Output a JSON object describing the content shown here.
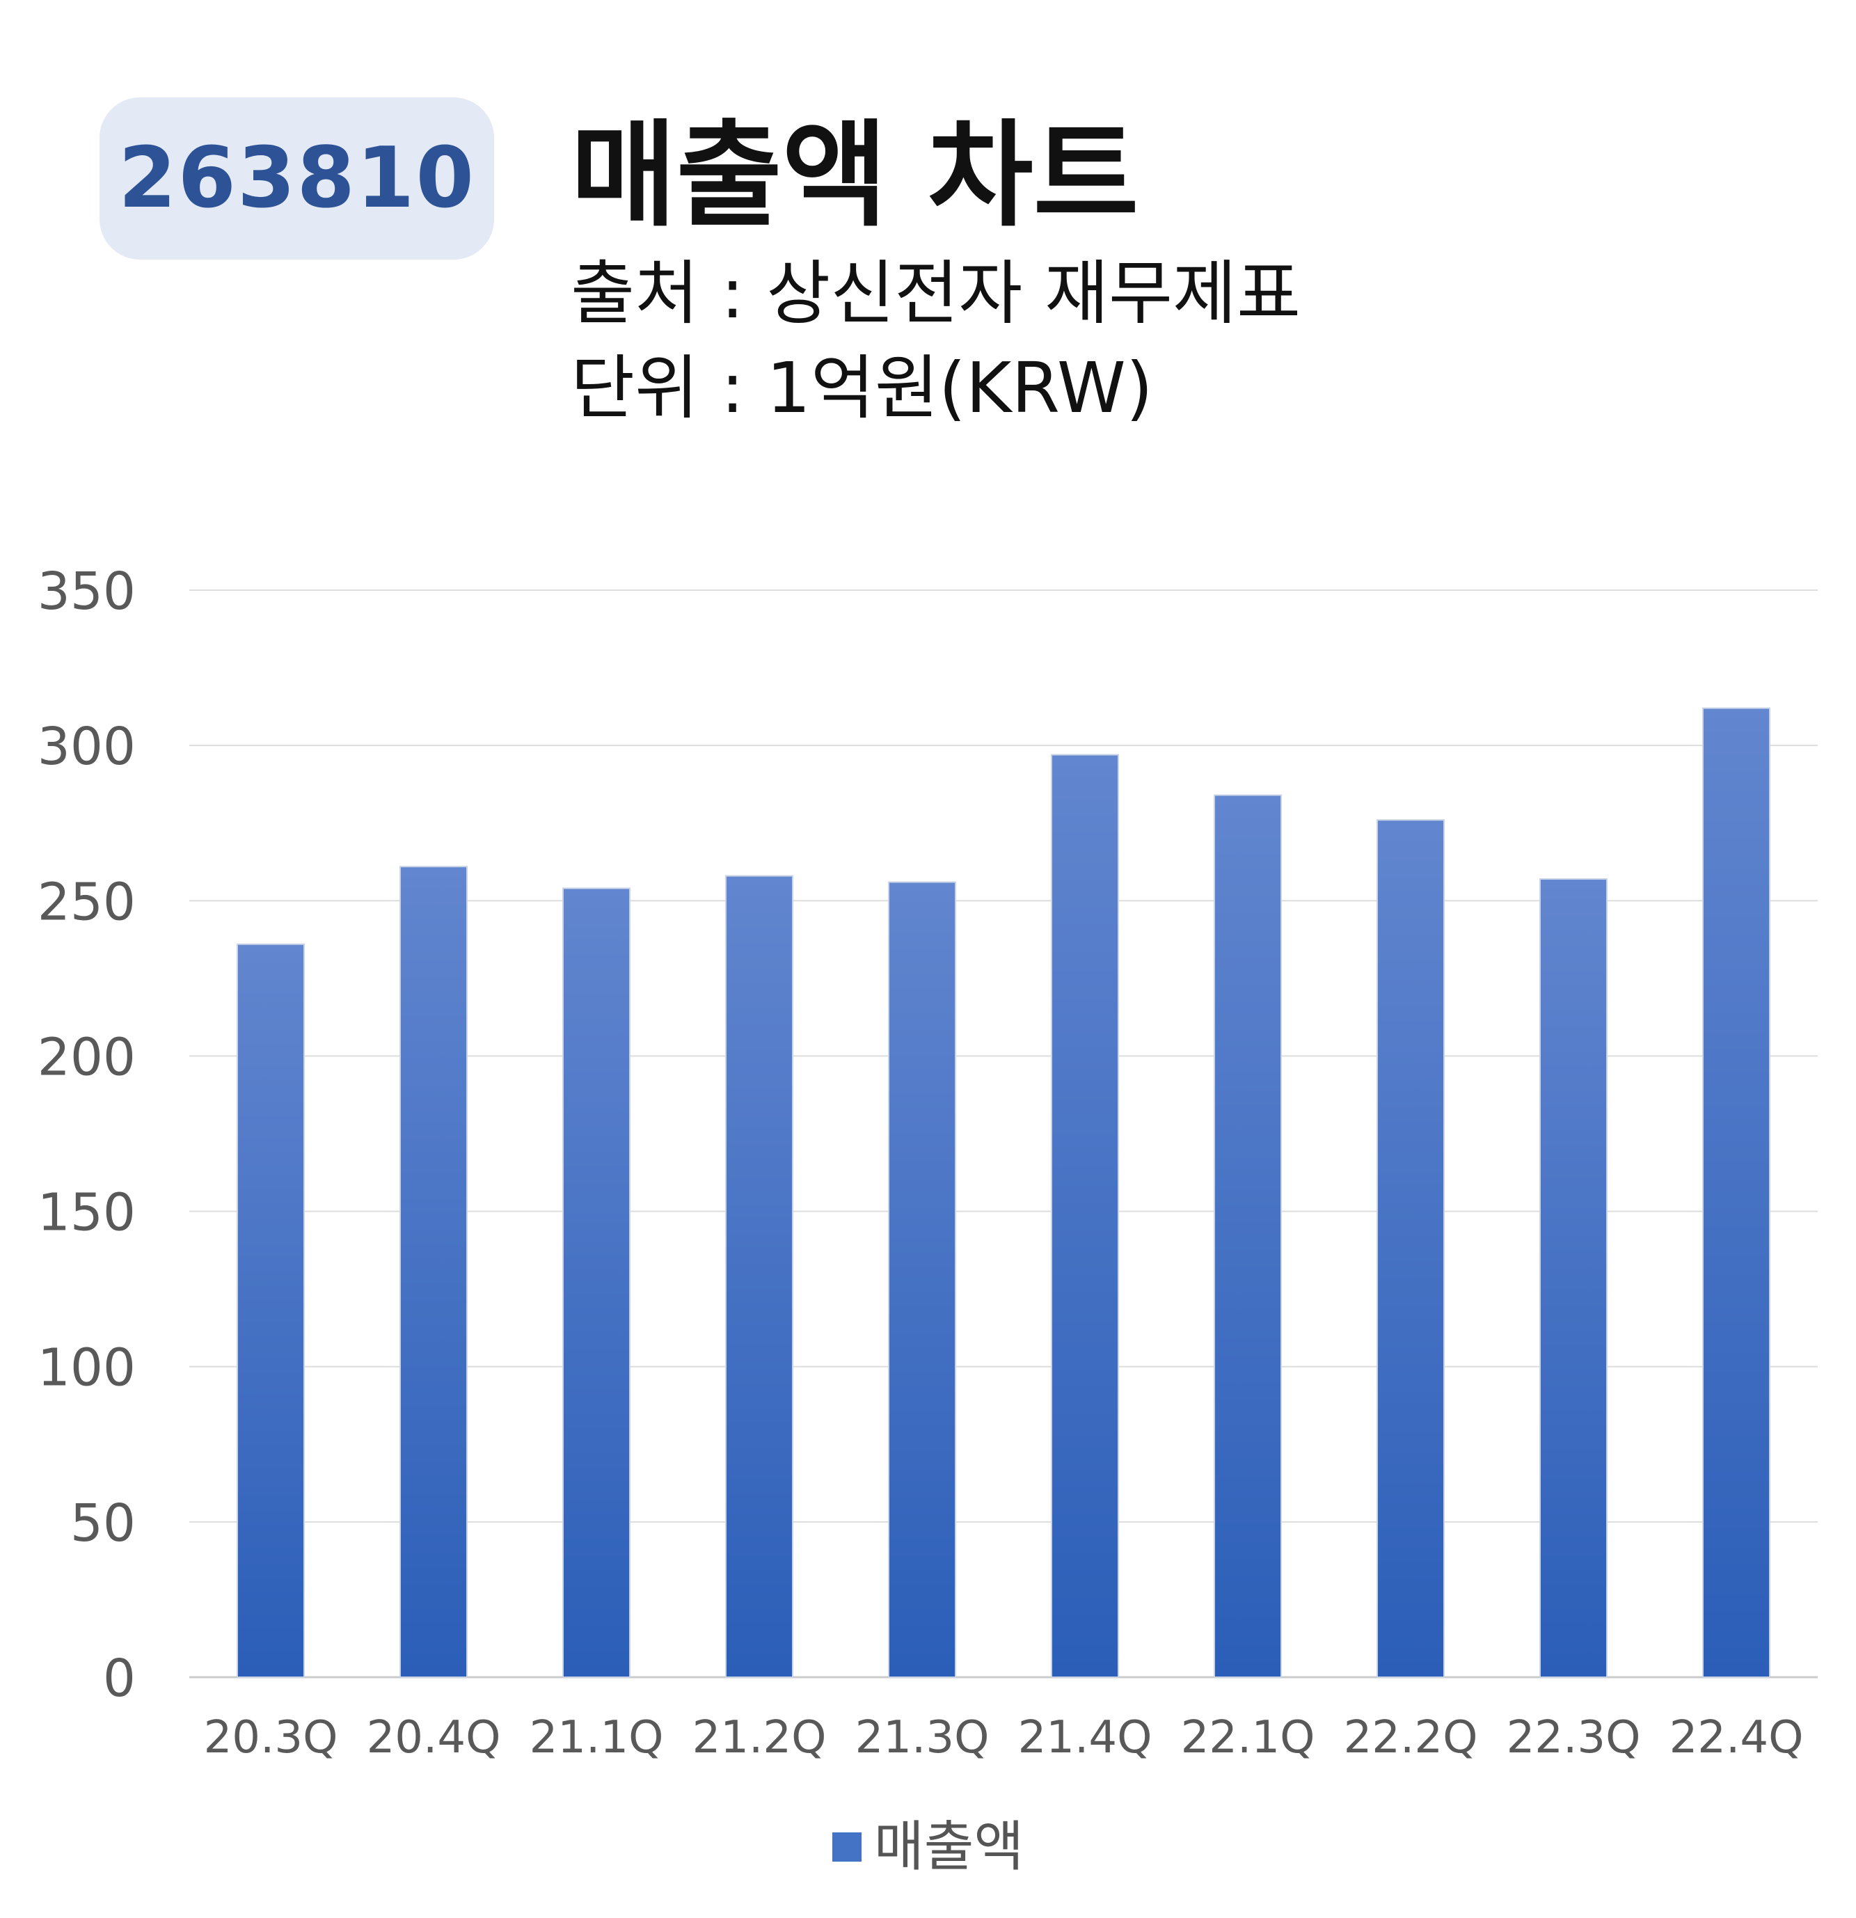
{
  "header": {
    "code": "263810",
    "title": "매출액 차트",
    "source": "출처 : 상신전자 재무제표",
    "unit": "단위 : 1억원(KRW)"
  },
  "chart_data": {
    "type": "bar",
    "categories": [
      "20.3Q",
      "20.4Q",
      "21.1Q",
      "21.2Q",
      "21.3Q",
      "21.4Q",
      "22.1Q",
      "22.2Q",
      "22.3Q",
      "22.4Q"
    ],
    "series": [
      {
        "name": "매출액",
        "color": "#4472c4",
        "values": [
          236,
          261,
          254,
          258,
          256,
          297,
          284,
          276,
          257,
          312
        ]
      }
    ],
    "ylim": [
      0,
      350
    ],
    "yticks": [
      0,
      50,
      100,
      150,
      200,
      250,
      300,
      350
    ],
    "grid": true,
    "legend": "bottom"
  }
}
